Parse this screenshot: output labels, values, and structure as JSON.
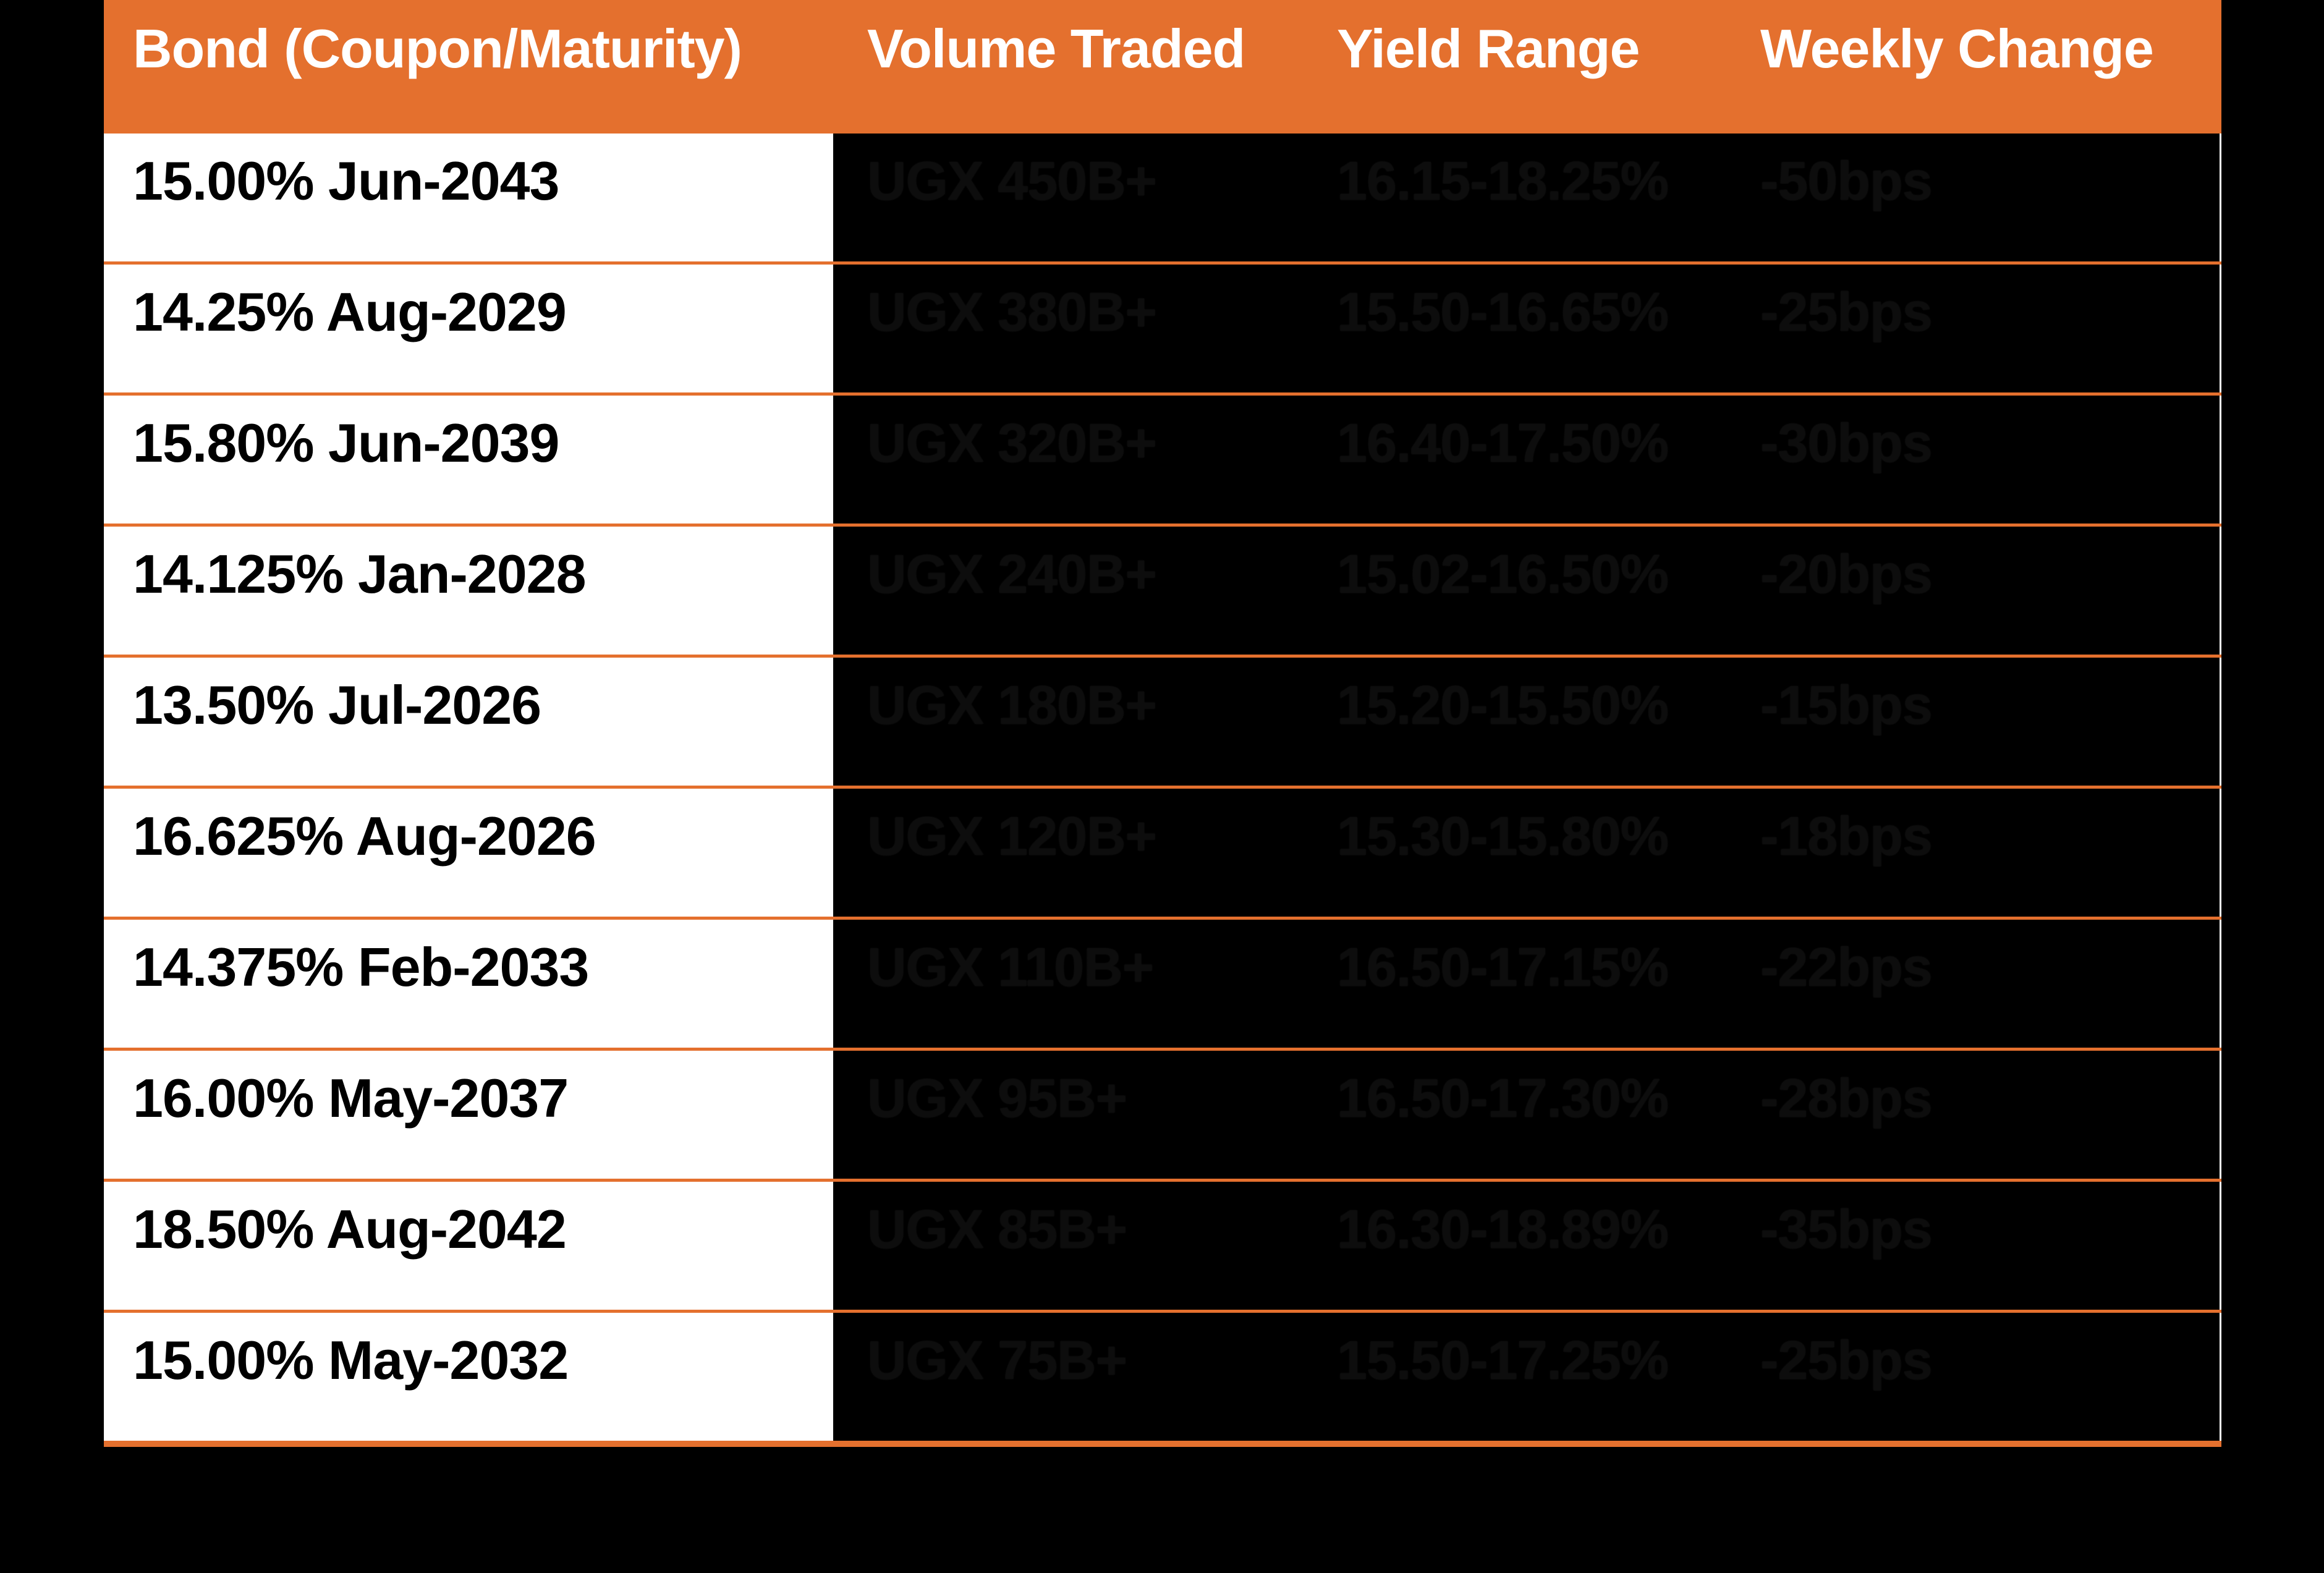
{
  "table": {
    "columns": [
      "Bond (Coupon/Maturity)",
      "Volume Traded",
      "Yield Range",
      "Weekly Change"
    ],
    "rows": [
      {
        "bond": "15.00% Jun-2043",
        "volume": "UGX 450B+",
        "yield_range": "16.15-18.25%",
        "weekly_change": "-50bps"
      },
      {
        "bond": "14.25% Aug-2029",
        "volume": "UGX 380B+",
        "yield_range": "15.50-16.65%",
        "weekly_change": "-25bps"
      },
      {
        "bond": "15.80% Jun-2039",
        "volume": "UGX 320B+",
        "yield_range": "16.40-17.50%",
        "weekly_change": "-30bps"
      },
      {
        "bond": "14.125% Jan-2028",
        "volume": "UGX 240B+",
        "yield_range": "15.02-16.50%",
        "weekly_change": "-20bps"
      },
      {
        "bond": "13.50% Jul-2026",
        "volume": "UGX 180B+",
        "yield_range": "15.20-15.50%",
        "weekly_change": "-15bps"
      },
      {
        "bond": "16.625% Aug-2026",
        "volume": "UGX 120B+",
        "yield_range": "15.30-15.80%",
        "weekly_change": "-18bps"
      },
      {
        "bond": "14.375% Feb-2033",
        "volume": "UGX 110B+",
        "yield_range": "16.50-17.15%",
        "weekly_change": "-22bps"
      },
      {
        "bond": "16.00% May-2037",
        "volume": "UGX 95B+",
        "yield_range": "16.50-17.30%",
        "weekly_change": "-28bps"
      },
      {
        "bond": "18.50% Aug-2042",
        "volume": "UGX 85B+",
        "yield_range": "16.30-18.89%",
        "weekly_change": "-35bps"
      },
      {
        "bond": "15.00% May-2032",
        "volume": "UGX 75B+",
        "yield_range": "15.50-17.25%",
        "weekly_change": "-25bps"
      }
    ]
  },
  "colors": {
    "header_bg": "#E4702E",
    "header_text": "#FFFFFF",
    "row_divider": "#E4702E",
    "bond_cell_bg": "#FFFFFF",
    "bond_cell_text": "#000000",
    "data_cell_bg": "#000000",
    "data_cell_text": "#0D0D0D",
    "page_bg": "#000000"
  }
}
